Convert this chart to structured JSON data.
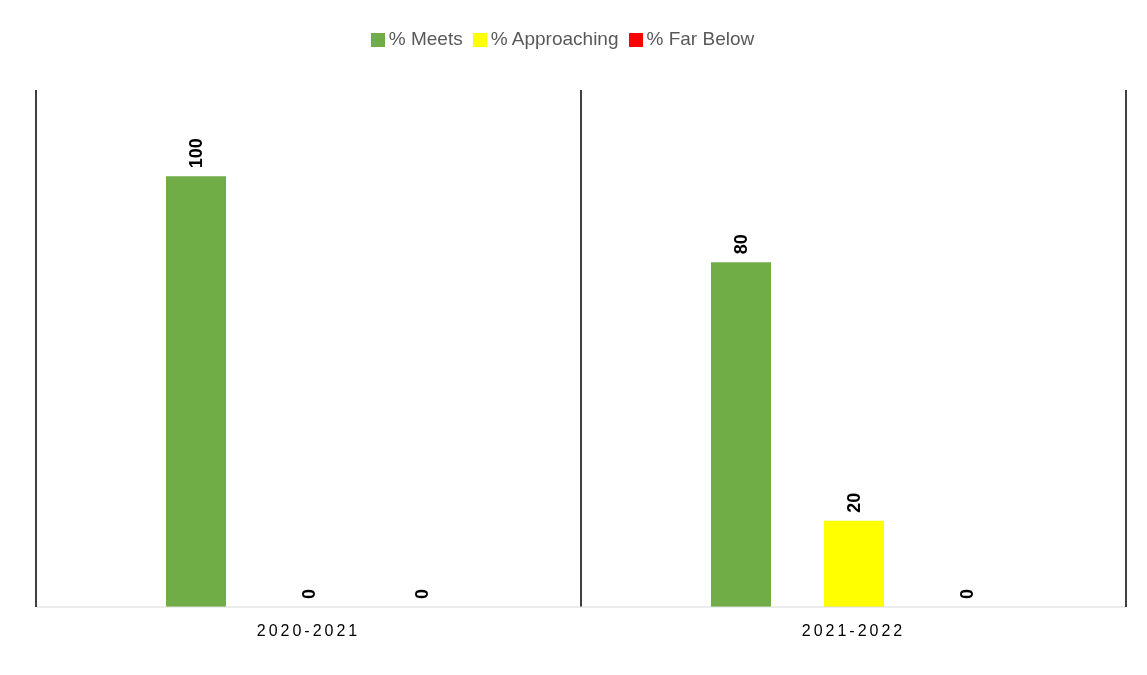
{
  "chart_data": {
    "type": "bar",
    "categories": [
      "2020-2021",
      "2021-2022"
    ],
    "series": [
      {
        "name": "% Meets",
        "color": "#70ad47",
        "values": [
          100,
          80
        ]
      },
      {
        "name": "% Approaching",
        "color": "#ffff00",
        "values": [
          0,
          20
        ]
      },
      {
        "name": "% Far Below",
        "color": "#ff0000",
        "values": [
          0,
          0
        ]
      }
    ],
    "ylim": [
      0,
      120
    ],
    "data_labels": true,
    "legend": "top"
  }
}
